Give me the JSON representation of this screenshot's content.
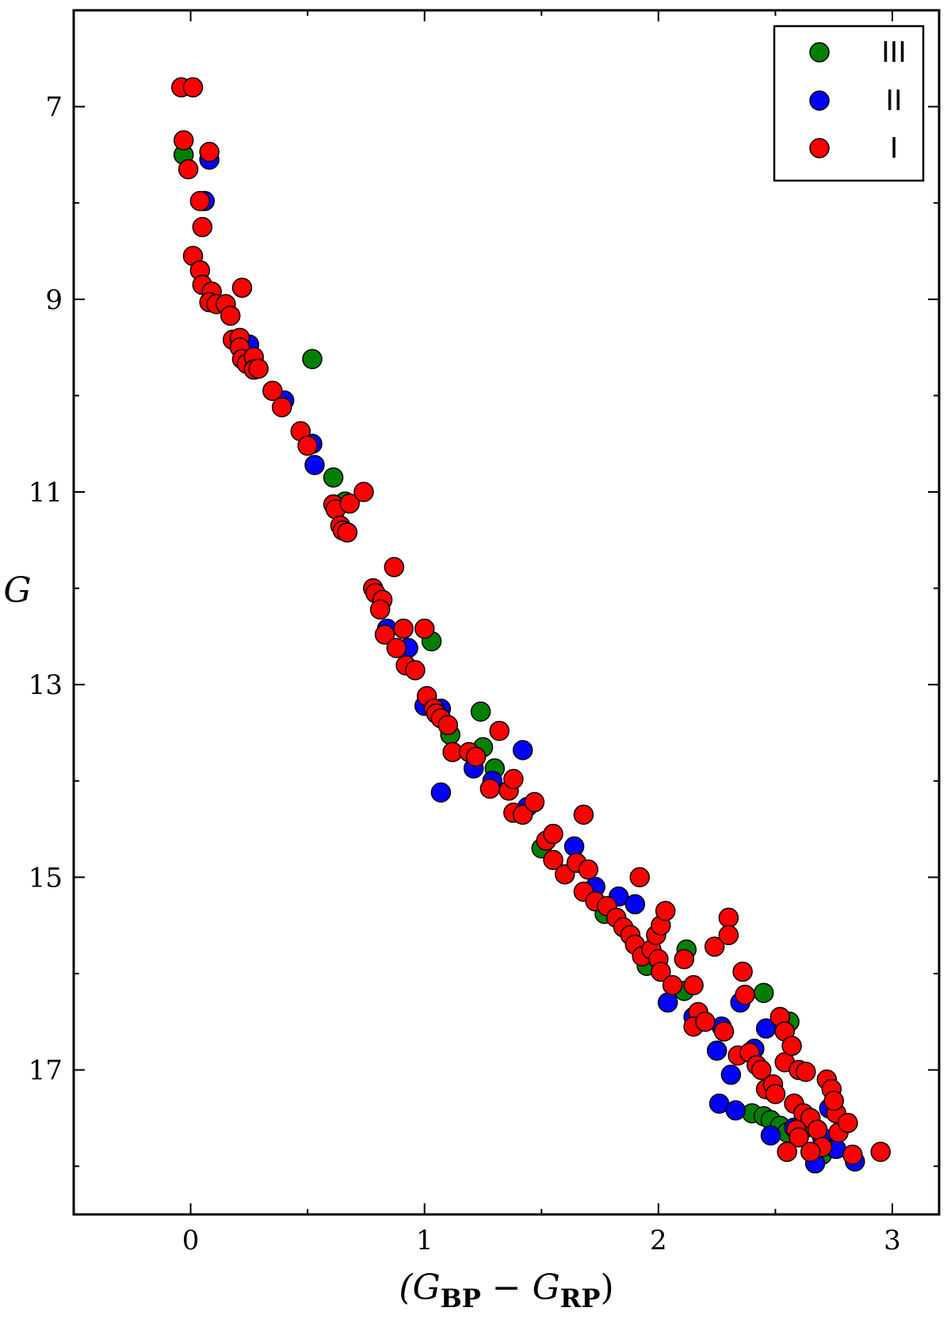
{
  "chart_data": {
    "type": "scatter",
    "xlabel_parts": [
      "(G",
      "BP",
      " − G",
      "RP",
      ")"
    ],
    "ylabel": "G",
    "xlim": [
      -0.5,
      3.2
    ],
    "ylim": [
      18.5,
      6.0
    ],
    "y_inverted": true,
    "x_ticks": [
      0,
      1,
      2,
      3
    ],
    "x_tick_labels": [
      "0",
      "1",
      "2",
      "3"
    ],
    "y_ticks": [
      7,
      9,
      11,
      13,
      15,
      17
    ],
    "y_tick_labels": [
      "7",
      "9",
      "11",
      "13",
      "15",
      "17"
    ],
    "legend_position": "top-right",
    "grid": false,
    "series": [
      {
        "name": "III",
        "color": "#008000",
        "points": [
          [
            -0.03,
            7.5
          ],
          [
            0.52,
            9.62
          ],
          [
            0.61,
            10.85
          ],
          [
            0.66,
            11.1
          ],
          [
            1.03,
            12.55
          ],
          [
            1.11,
            13.52
          ],
          [
            1.24,
            13.28
          ],
          [
            1.25,
            13.65
          ],
          [
            1.3,
            13.87
          ],
          [
            1.5,
            14.7
          ],
          [
            1.77,
            15.38
          ],
          [
            1.95,
            15.92
          ],
          [
            2.12,
            15.75
          ],
          [
            2.11,
            16.18
          ],
          [
            2.45,
            16.2
          ],
          [
            2.56,
            16.5
          ],
          [
            2.4,
            17.45
          ],
          [
            2.45,
            17.48
          ],
          [
            2.48,
            17.52
          ],
          [
            2.52,
            17.58
          ],
          [
            2.55,
            17.65
          ],
          [
            2.63,
            17.6
          ],
          [
            2.7,
            17.88
          ],
          [
            2.74,
            17.72
          ]
        ]
      },
      {
        "name": "II",
        "color": "#0000ff",
        "points": [
          [
            0.08,
            7.55
          ],
          [
            0.06,
            7.98
          ],
          [
            0.25,
            9.47
          ],
          [
            0.4,
            10.05
          ],
          [
            0.52,
            10.5
          ],
          [
            0.53,
            10.72
          ],
          [
            0.84,
            12.42
          ],
          [
            0.93,
            12.62
          ],
          [
            1.0,
            13.22
          ],
          [
            1.07,
            13.25
          ],
          [
            1.07,
            14.12
          ],
          [
            1.21,
            13.87
          ],
          [
            1.29,
            14.0
          ],
          [
            1.42,
            13.68
          ],
          [
            1.44,
            14.27
          ],
          [
            1.64,
            14.68
          ],
          [
            1.73,
            15.1
          ],
          [
            1.83,
            15.2
          ],
          [
            1.9,
            15.28
          ],
          [
            2.04,
            16.3
          ],
          [
            2.15,
            16.45
          ],
          [
            2.27,
            16.55
          ],
          [
            2.25,
            16.8
          ],
          [
            2.26,
            17.35
          ],
          [
            2.31,
            17.05
          ],
          [
            2.33,
            17.42
          ],
          [
            2.35,
            16.3
          ],
          [
            2.41,
            16.78
          ],
          [
            2.46,
            16.57
          ],
          [
            2.48,
            17.68
          ],
          [
            2.58,
            17.6
          ],
          [
            2.67,
            17.97
          ],
          [
            2.7,
            17.7
          ],
          [
            2.73,
            17.4
          ],
          [
            2.76,
            17.82
          ],
          [
            2.84,
            17.95
          ]
        ]
      },
      {
        "name": "I",
        "color": "#ff0000",
        "points": [
          [
            -0.04,
            6.8
          ],
          [
            0.01,
            6.8
          ],
          [
            -0.03,
            7.35
          ],
          [
            0.08,
            7.47
          ],
          [
            -0.01,
            7.65
          ],
          [
            0.04,
            7.98
          ],
          [
            0.05,
            8.25
          ],
          [
            0.01,
            8.55
          ],
          [
            0.04,
            8.7
          ],
          [
            0.05,
            8.85
          ],
          [
            0.09,
            8.92
          ],
          [
            0.08,
            9.03
          ],
          [
            0.11,
            9.05
          ],
          [
            0.22,
            8.88
          ],
          [
            0.15,
            9.05
          ],
          [
            0.17,
            9.17
          ],
          [
            0.18,
            9.42
          ],
          [
            0.21,
            9.4
          ],
          [
            0.21,
            9.5
          ],
          [
            0.22,
            9.62
          ],
          [
            0.24,
            9.67
          ],
          [
            0.27,
            9.6
          ],
          [
            0.27,
            9.73
          ],
          [
            0.29,
            9.72
          ],
          [
            0.35,
            9.95
          ],
          [
            0.39,
            10.12
          ],
          [
            0.47,
            10.37
          ],
          [
            0.5,
            10.52
          ],
          [
            0.61,
            11.13
          ],
          [
            0.62,
            11.18
          ],
          [
            0.68,
            11.12
          ],
          [
            0.74,
            11.0
          ],
          [
            0.64,
            11.35
          ],
          [
            0.65,
            11.4
          ],
          [
            0.67,
            11.42
          ],
          [
            0.78,
            12.0
          ],
          [
            0.79,
            12.05
          ],
          [
            0.82,
            12.12
          ],
          [
            0.81,
            12.22
          ],
          [
            0.87,
            11.78
          ],
          [
            0.83,
            12.48
          ],
          [
            0.91,
            12.42
          ],
          [
            1.0,
            12.42
          ],
          [
            0.88,
            12.62
          ],
          [
            0.92,
            12.8
          ],
          [
            0.96,
            12.85
          ],
          [
            1.01,
            13.12
          ],
          [
            1.04,
            13.25
          ],
          [
            1.05,
            13.3
          ],
          [
            1.07,
            13.35
          ],
          [
            1.1,
            13.42
          ],
          [
            1.12,
            13.7
          ],
          [
            1.19,
            13.7
          ],
          [
            1.22,
            13.75
          ],
          [
            1.28,
            14.08
          ],
          [
            1.32,
            13.48
          ],
          [
            1.36,
            14.1
          ],
          [
            1.38,
            13.98
          ],
          [
            1.38,
            14.33
          ],
          [
            1.42,
            14.35
          ],
          [
            1.47,
            14.22
          ],
          [
            1.52,
            14.62
          ],
          [
            1.55,
            14.55
          ],
          [
            1.55,
            14.82
          ],
          [
            1.6,
            14.97
          ],
          [
            1.65,
            14.85
          ],
          [
            1.68,
            14.35
          ],
          [
            1.68,
            15.15
          ],
          [
            1.7,
            14.92
          ],
          [
            1.73,
            15.25
          ],
          [
            1.78,
            15.3
          ],
          [
            1.82,
            15.42
          ],
          [
            1.85,
            15.52
          ],
          [
            1.88,
            15.6
          ],
          [
            1.9,
            15.7
          ],
          [
            1.93,
            15.82
          ],
          [
            1.92,
            15.0
          ],
          [
            1.97,
            15.75
          ],
          [
            1.99,
            15.6
          ],
          [
            2.0,
            15.85
          ],
          [
            2.01,
            15.98
          ],
          [
            2.01,
            15.5
          ],
          [
            2.03,
            15.35
          ],
          [
            2.06,
            16.12
          ],
          [
            2.11,
            15.85
          ],
          [
            2.15,
            16.12
          ],
          [
            2.17,
            16.4
          ],
          [
            2.15,
            16.55
          ],
          [
            2.2,
            16.5
          ],
          [
            2.24,
            15.72
          ],
          [
            2.28,
            16.6
          ],
          [
            2.3,
            15.42
          ],
          [
            2.3,
            15.6
          ],
          [
            2.34,
            16.85
          ],
          [
            2.36,
            15.98
          ],
          [
            2.37,
            16.22
          ],
          [
            2.39,
            16.82
          ],
          [
            2.42,
            16.95
          ],
          [
            2.44,
            17.0
          ],
          [
            2.46,
            17.2
          ],
          [
            2.49,
            17.15
          ],
          [
            2.5,
            17.25
          ],
          [
            2.52,
            16.45
          ],
          [
            2.54,
            16.92
          ],
          [
            2.54,
            16.6
          ],
          [
            2.57,
            16.75
          ],
          [
            2.6,
            17.0
          ],
          [
            2.58,
            17.35
          ],
          [
            2.62,
            17.45
          ],
          [
            2.63,
            17.02
          ],
          [
            2.65,
            17.5
          ],
          [
            2.59,
            17.62
          ],
          [
            2.6,
            17.7
          ],
          [
            2.68,
            17.62
          ],
          [
            2.7,
            17.8
          ],
          [
            2.72,
            17.1
          ],
          [
            2.74,
            17.2
          ],
          [
            2.76,
            17.45
          ],
          [
            2.75,
            17.32
          ],
          [
            2.77,
            17.65
          ],
          [
            2.81,
            17.55
          ],
          [
            2.83,
            17.88
          ],
          [
            2.95,
            17.85
          ],
          [
            2.55,
            17.85
          ],
          [
            2.65,
            17.85
          ]
        ]
      }
    ]
  }
}
